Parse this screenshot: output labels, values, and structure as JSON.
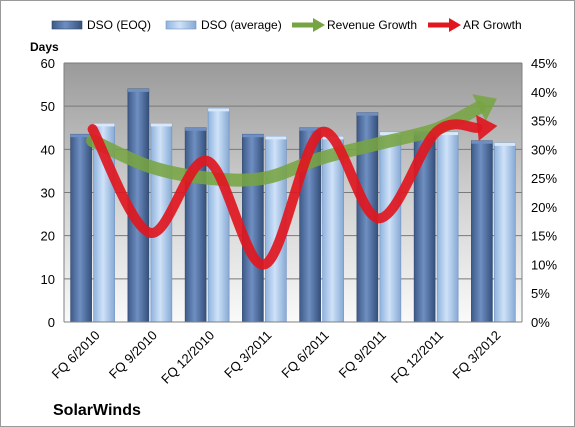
{
  "chart_data": {
    "type": "bar",
    "title": "",
    "company": "SolarWinds",
    "ylabel": "Days",
    "categories": [
      "FQ 6/2010",
      "FQ 9/2010",
      "FQ 12/2010",
      "FQ 3/2011",
      "FQ 6/2011",
      "FQ 9/2011",
      "FQ 12/2011",
      "FQ 3/2012"
    ],
    "ylim": [
      0,
      60
    ],
    "yticks": [
      "0",
      "10",
      "20",
      "30",
      "40",
      "50",
      "60"
    ],
    "y2lim": [
      0,
      45
    ],
    "y2ticks": [
      "0%",
      "5%",
      "10%",
      "15%",
      "20%",
      "25%",
      "30%",
      "35%",
      "40%",
      "45%"
    ],
    "grid": true,
    "legend_position": "top",
    "series": [
      {
        "name": "DSO (EOQ)",
        "kind": "bar",
        "axis": "left",
        "color": "#4a6a9e",
        "values": [
          43.5,
          54,
          45,
          43.5,
          45,
          48.5,
          44,
          42
        ]
      },
      {
        "name": "DSO (average)",
        "kind": "bar",
        "axis": "left",
        "color": "#a9c8ec",
        "values": [
          46,
          46,
          49.5,
          43,
          43,
          44,
          44,
          41.5
        ]
      },
      {
        "name": "Revenue Growth",
        "kind": "arrow-line",
        "axis": "right",
        "color": "#77a442",
        "values": [
          31.5,
          27,
          25,
          25,
          28.5,
          31,
          33.5,
          38.5
        ]
      },
      {
        "name": "AR Growth",
        "kind": "arrow-line",
        "axis": "right",
        "color": "#e0171f",
        "values": [
          33.5,
          15.5,
          28,
          10,
          33,
          18,
          33,
          34
        ]
      }
    ]
  }
}
